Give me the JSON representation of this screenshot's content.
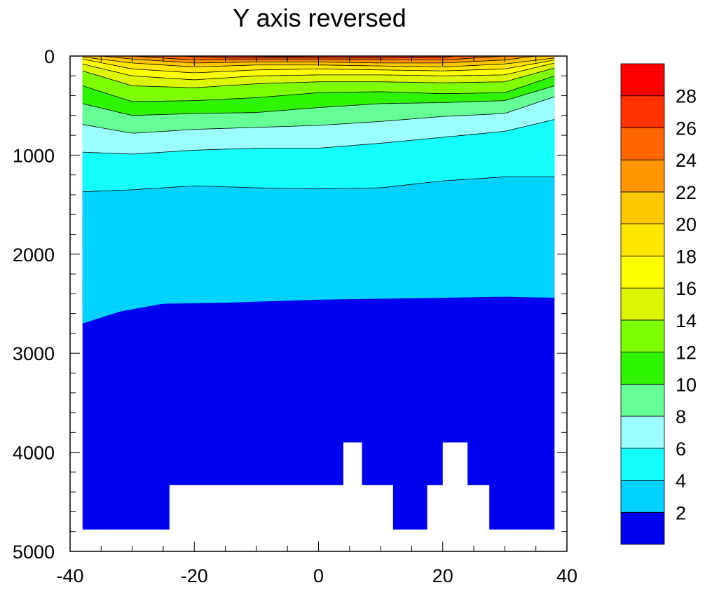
{
  "chart_data": {
    "type": "contour",
    "title": "Y axis reversed",
    "xlabel": "",
    "ylabel": "",
    "xlim": [
      -40,
      40
    ],
    "ylim": [
      0,
      5000
    ],
    "y_reversed": true,
    "x_ticks": [
      -40,
      -20,
      0,
      20,
      40
    ],
    "x_tick_labels": [
      "-40",
      "-20",
      "0",
      "20",
      "40"
    ],
    "y_ticks": [
      0,
      1000,
      2000,
      3000,
      4000,
      5000
    ],
    "y_tick_labels": [
      "0",
      "1000",
      "2000",
      "3000",
      "4000",
      "5000"
    ],
    "contour_levels": [
      2,
      4,
      6,
      8,
      10,
      12,
      14,
      16,
      18,
      20,
      22,
      24,
      26,
      28
    ],
    "colorbar": {
      "tick_labels": [
        "2",
        "4",
        "6",
        "8",
        "10",
        "12",
        "14",
        "16",
        "18",
        "20",
        "22",
        "24",
        "26",
        "28"
      ],
      "colors": [
        "#0000f0",
        "#00d2ff",
        "#14ffff",
        "#9bffff",
        "#66ff96",
        "#2ef400",
        "#7dff00",
        "#dcf500",
        "#ffff00",
        "#ffe600",
        "#ffc800",
        "#ff9600",
        "#ff6600",
        "#ff3200",
        "#ff0000"
      ]
    },
    "isotherm_depths": [
      {
        "level": 2,
        "x": [
          -38,
          -32,
          -25,
          -15,
          0,
          10,
          20,
          30,
          38
        ],
        "depth": [
          2700,
          2580,
          2500,
          2490,
          2460,
          2450,
          2440,
          2430,
          2440
        ]
      },
      {
        "level": 4,
        "x": [
          -38,
          -30,
          -20,
          -10,
          0,
          10,
          20,
          30,
          38
        ],
        "depth": [
          1370,
          1350,
          1310,
          1330,
          1340,
          1330,
          1260,
          1220,
          1220
        ]
      },
      {
        "level": 6,
        "x": [
          -38,
          -30,
          -20,
          -10,
          0,
          10,
          20,
          30,
          38
        ],
        "depth": [
          970,
          990,
          950,
          930,
          930,
          880,
          820,
          760,
          640
        ]
      },
      {
        "level": 8,
        "x": [
          -38,
          -30,
          -20,
          -10,
          0,
          10,
          20,
          30,
          38
        ],
        "depth": [
          690,
          780,
          740,
          720,
          700,
          660,
          610,
          580,
          410
        ]
      },
      {
        "level": 10,
        "x": [
          -38,
          -30,
          -20,
          -10,
          0,
          10,
          20,
          30,
          38
        ],
        "depth": [
          480,
          600,
          580,
          570,
          520,
          480,
          470,
          450,
          300
        ]
      },
      {
        "level": 12,
        "x": [
          -38,
          -30,
          -20,
          -10,
          0,
          10,
          20,
          30,
          38
        ],
        "depth": [
          300,
          460,
          450,
          420,
          370,
          360,
          380,
          370,
          200
        ]
      },
      {
        "level": 14,
        "x": [
          -38,
          -30,
          -20,
          -10,
          0,
          10,
          20,
          30,
          38
        ],
        "depth": [
          150,
          300,
          320,
          280,
          260,
          260,
          270,
          260,
          120
        ]
      },
      {
        "level": 16,
        "x": [
          -38,
          -30,
          -20,
          -10,
          0,
          10,
          20,
          30,
          38
        ],
        "depth": [
          80,
          200,
          240,
          200,
          190,
          190,
          200,
          190,
          70
        ]
      },
      {
        "level": 18,
        "x": [
          -38,
          -30,
          -20,
          -10,
          0,
          10,
          20,
          30,
          38
        ],
        "depth": [
          30,
          130,
          170,
          140,
          130,
          140,
          150,
          130,
          40
        ]
      },
      {
        "level": 20,
        "x": [
          -38,
          -30,
          -20,
          -10,
          0,
          10,
          20,
          30,
          38
        ],
        "depth": [
          10,
          70,
          110,
          90,
          90,
          100,
          110,
          80,
          20
        ]
      },
      {
        "level": 22,
        "x": [
          -35,
          -30,
          -20,
          -10,
          0,
          10,
          20,
          30,
          35
        ],
        "depth": [
          0,
          30,
          70,
          60,
          60,
          70,
          70,
          40,
          0
        ]
      },
      {
        "level": 24,
        "x": [
          -30,
          -25,
          -20,
          -10,
          0,
          10,
          20,
          25,
          30
        ],
        "depth": [
          0,
          20,
          40,
          40,
          40,
          40,
          40,
          20,
          0
        ]
      },
      {
        "level": 26,
        "x": [
          -22,
          -15,
          -10,
          0,
          10,
          20,
          22
        ],
        "depth": [
          0,
          20,
          20,
          20,
          20,
          15,
          0
        ]
      },
      {
        "level": 28,
        "x": [
          -12,
          -8,
          -4,
          0
        ],
        "depth": [
          0,
          5,
          5,
          0
        ]
      }
    ],
    "ocean_bottom": {
      "x": [
        -38,
        -24,
        -24,
        4,
        4,
        7,
        7,
        12,
        12,
        17.5,
        17.5,
        20,
        20,
        24,
        24,
        27.5,
        27.5,
        38
      ],
      "depth": [
        4780,
        4780,
        4330,
        4330,
        3900,
        3900,
        4330,
        4330,
        4780,
        4780,
        4330,
        4330,
        3900,
        3900,
        4330,
        4330,
        4780,
        4780
      ]
    },
    "data_x_range": [
      -38,
      38
    ],
    "grid": false,
    "legend": "colorbar right"
  }
}
